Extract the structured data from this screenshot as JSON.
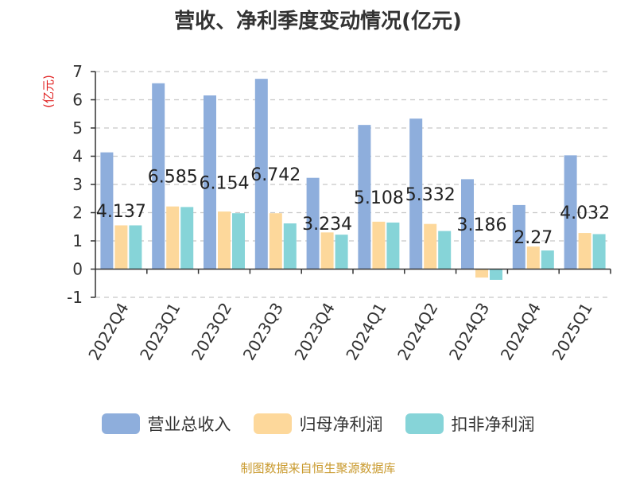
{
  "title": "营收、净利季度变动情况(亿元)",
  "source": "制图数据来自恒生聚源数据库",
  "chart_data": {
    "type": "bar",
    "ylabel": "(亿元)",
    "ylim": [
      -1,
      7
    ],
    "yticks": [
      -1,
      0,
      1,
      2,
      3,
      4,
      5,
      6,
      7
    ],
    "grid": true,
    "legend_position": "bottom",
    "categories": [
      "2022Q4",
      "2023Q1",
      "2023Q2",
      "2023Q3",
      "2023Q4",
      "2024Q1",
      "2024Q2",
      "2024Q3",
      "2024Q4",
      "2025Q1"
    ],
    "series": [
      {
        "name": "营业总收入",
        "color": "#8eaedc",
        "values": [
          4.137,
          6.585,
          6.154,
          6.742,
          3.234,
          5.108,
          5.332,
          3.186,
          2.27,
          4.032
        ],
        "labels": [
          "4.137",
          "6.585",
          "6.154",
          "6.742",
          "3.234",
          "5.108",
          "5.332",
          "3.186",
          "2.27",
          "4.032"
        ]
      },
      {
        "name": "归母净利润",
        "color": "#fdd89b",
        "values": [
          1.55,
          2.22,
          2.04,
          1.98,
          1.3,
          1.68,
          1.6,
          -0.3,
          0.8,
          1.28
        ]
      },
      {
        "name": "扣非净利润",
        "color": "#86d4d8",
        "values": [
          1.55,
          2.2,
          1.98,
          1.62,
          1.22,
          1.65,
          1.35,
          -0.38,
          0.66,
          1.24
        ]
      }
    ]
  }
}
